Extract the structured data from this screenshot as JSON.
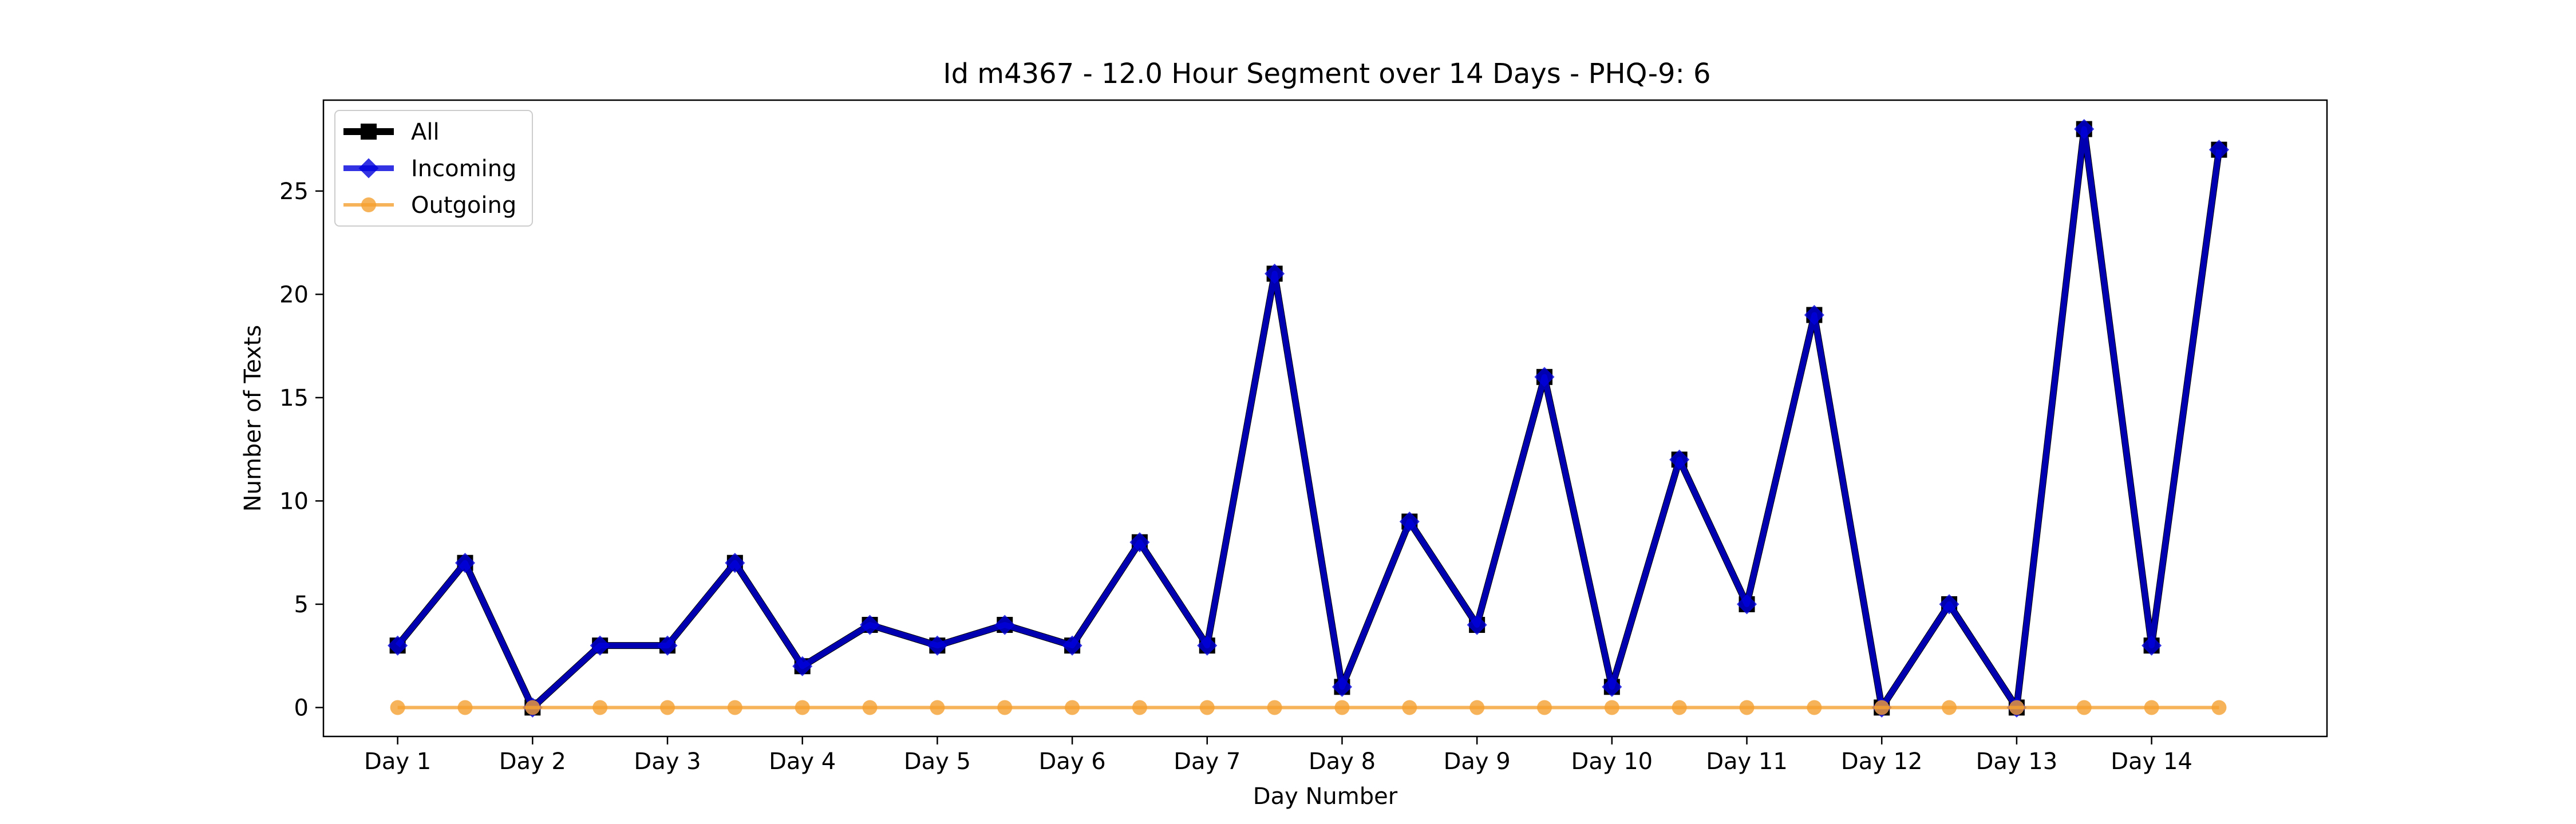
{
  "chart_data": {
    "type": "line",
    "title": "Id m4367 - 12.0 Hour Segment over 14 Days - PHQ-9: 6",
    "xlabel": "Day Number",
    "ylabel": "Number of Texts",
    "x": [
      1,
      1.5,
      2,
      2.5,
      3,
      3.5,
      4,
      4.5,
      5,
      5.5,
      6,
      6.5,
      7,
      7.5,
      8,
      8.5,
      9,
      9.5,
      10,
      10.5,
      11,
      11.5,
      12,
      12.5,
      13,
      13.5,
      14,
      14.5
    ],
    "xticks": [
      1,
      2,
      3,
      4,
      5,
      6,
      7,
      8,
      9,
      10,
      11,
      12,
      13,
      14
    ],
    "xtick_labels": [
      "Day 1",
      "Day 2",
      "Day 3",
      "Day 4",
      "Day 5",
      "Day 6",
      "Day 7",
      "Day 8",
      "Day 9",
      "Day 10",
      "Day 11",
      "Day 12",
      "Day 13",
      "Day 14"
    ],
    "xlim": [
      0.45,
      15.3
    ],
    "ylim": [
      -1.4,
      29.4
    ],
    "yticks": [
      0,
      5,
      10,
      15,
      20,
      25
    ],
    "legend_position": "top-left",
    "grid": false,
    "series": [
      {
        "name": "All",
        "color": "#000000",
        "marker": "square",
        "values": [
          3,
          7,
          0,
          3,
          3,
          7,
          2,
          4,
          3,
          4,
          3,
          8,
          3,
          21,
          1,
          9,
          4,
          16,
          1,
          12,
          5,
          19,
          0,
          5,
          0,
          28,
          3,
          27
        ]
      },
      {
        "name": "Incoming",
        "color": "#0000dd",
        "marker": "diamond",
        "values": [
          3,
          7,
          0,
          3,
          3,
          7,
          2,
          4,
          3,
          4,
          3,
          8,
          3,
          21,
          1,
          9,
          4,
          16,
          1,
          12,
          5,
          19,
          0,
          5,
          0,
          28,
          3,
          27
        ]
      },
      {
        "name": "Outgoing",
        "color": "#f5a030",
        "marker": "circle",
        "values": [
          0,
          0,
          0,
          0,
          0,
          0,
          0,
          0,
          0,
          0,
          0,
          0,
          0,
          0,
          0,
          0,
          0,
          0,
          0,
          0,
          0,
          0,
          0,
          0,
          0,
          0,
          0,
          0
        ]
      }
    ]
  }
}
